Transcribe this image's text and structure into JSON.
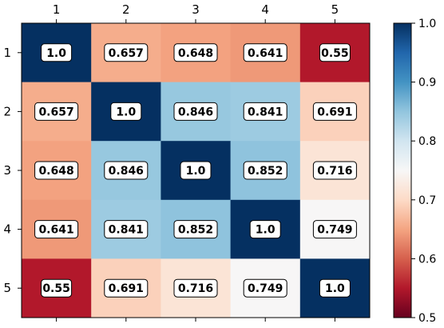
{
  "chart_data": {
    "type": "heatmap",
    "title": "",
    "xlabel": "",
    "ylabel": "",
    "x_ticks": [
      "1",
      "2",
      "3",
      "4",
      "5"
    ],
    "y_ticks": [
      "1",
      "2",
      "3",
      "4",
      "5"
    ],
    "values": [
      [
        1.0,
        0.657,
        0.648,
        0.641,
        0.55
      ],
      [
        0.657,
        1.0,
        0.846,
        0.841,
        0.691
      ],
      [
        0.648,
        0.846,
        1.0,
        0.852,
        0.716
      ],
      [
        0.641,
        0.841,
        0.852,
        1.0,
        0.749
      ],
      [
        0.55,
        0.691,
        0.716,
        0.749,
        1.0
      ]
    ],
    "cell_labels": [
      [
        "1.0",
        "0.657",
        "0.648",
        "0.641",
        "0.55"
      ],
      [
        "0.657",
        "1.0",
        "0.846",
        "0.841",
        "0.691"
      ],
      [
        "0.648",
        "0.846",
        "1.0",
        "0.852",
        "0.716"
      ],
      [
        "0.641",
        "0.841",
        "0.852",
        "1.0",
        "0.749"
      ],
      [
        "0.55",
        "0.691",
        "0.716",
        "0.749",
        "1.0"
      ]
    ],
    "colormap": "RdBu",
    "vmin": 0.5,
    "vmax": 1.0,
    "colorbar": {
      "ticks": [
        0.5,
        0.6,
        0.7,
        0.8,
        0.9,
        1.0
      ],
      "tick_labels": [
        "0.5",
        "0.6",
        "0.7",
        "0.8",
        "0.9",
        "1.0"
      ],
      "placement": "right"
    },
    "x_tick_position": "top",
    "grid": false
  }
}
